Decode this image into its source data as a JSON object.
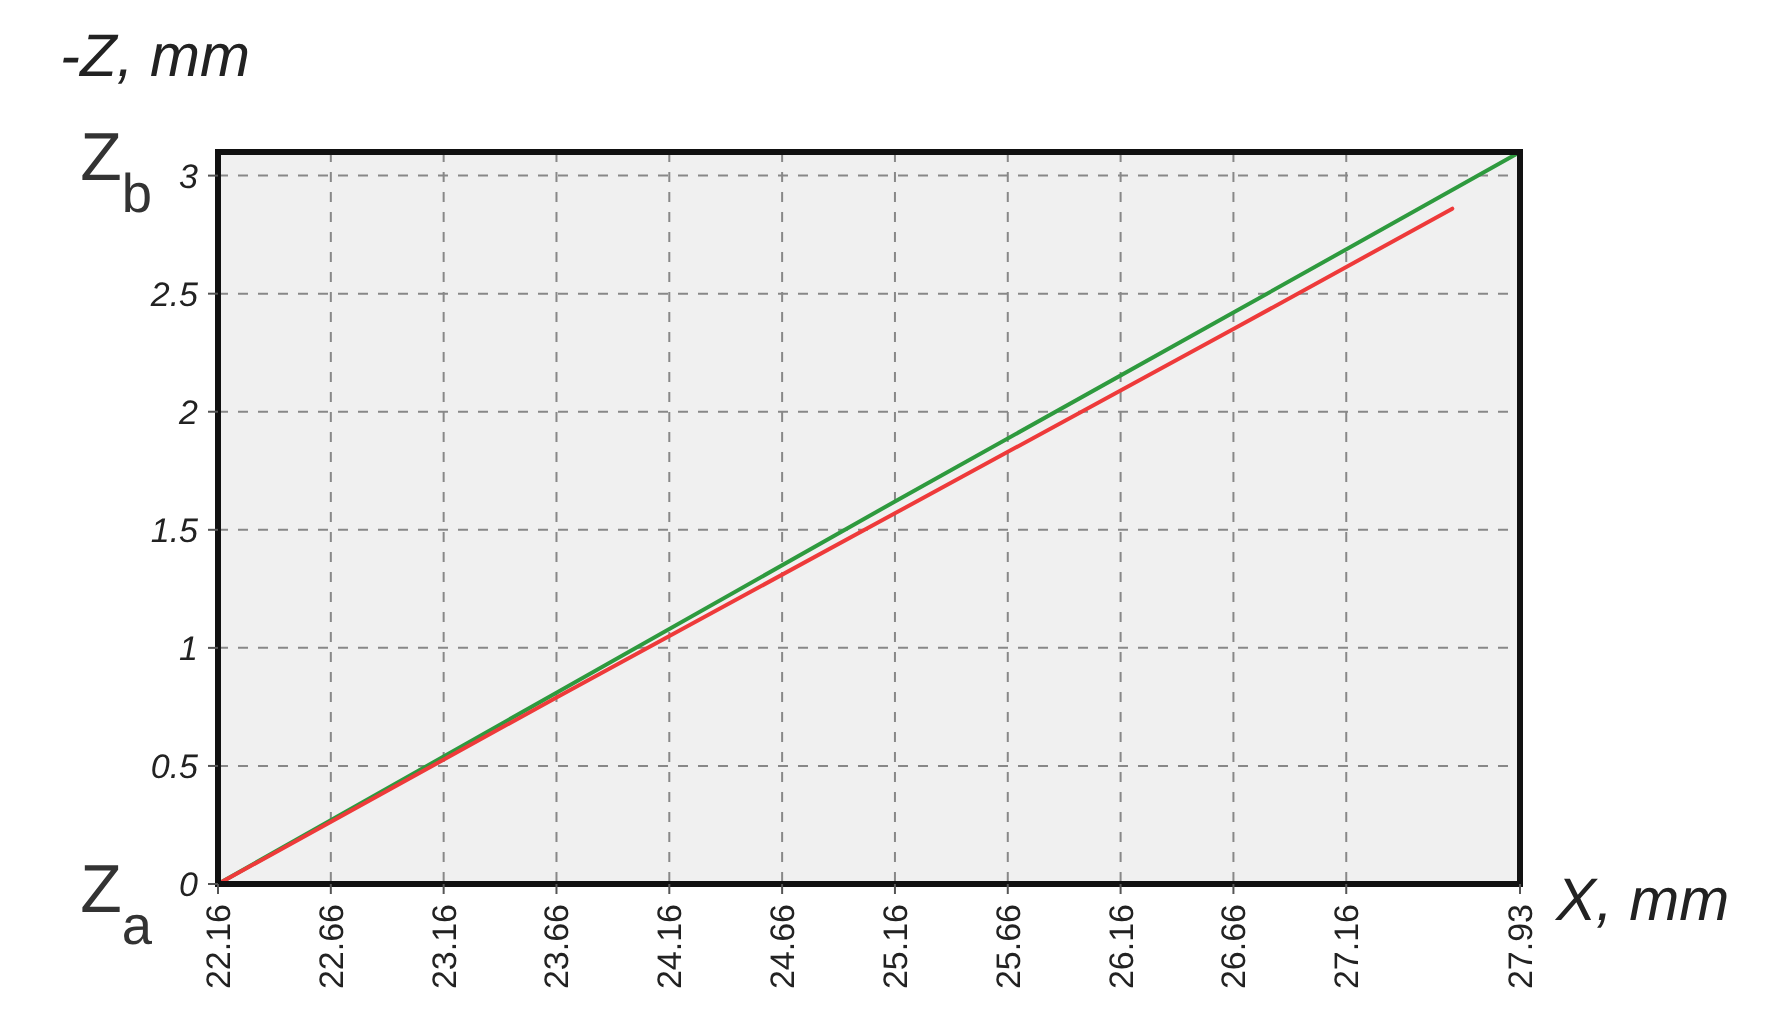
{
  "chart_data": {
    "type": "line",
    "xlabel": "X, mm",
    "ylabel": "-Z, mm",
    "xlim": [
      22.16,
      27.93
    ],
    "xticks": [
      22.16,
      22.66,
      23.16,
      23.66,
      24.16,
      24.66,
      25.16,
      25.66,
      26.16,
      26.66,
      27.16,
      27.93
    ],
    "ylim": [
      0,
      3.1
    ],
    "yticks": [
      0,
      0.5,
      1,
      1.5,
      2,
      2.5,
      3
    ],
    "grid": true,
    "line_style": "solid",
    "marker": "none",
    "annotations": [
      "Z$_{a}$",
      "Z$_{b}$"
    ],
    "series": [
      {
        "color": "#2e9a3e",
        "x": [
          22.16,
          23.66,
          25.16,
          26.66,
          27.93
        ],
        "values": [
          0,
          0.81,
          1.62,
          2.42,
          3.1
        ]
      },
      {
        "color": "#ee3a3a",
        "x": [
          22.16,
          23.66,
          25.16,
          26.66,
          27.63
        ],
        "values": [
          0,
          0.79,
          1.57,
          2.35,
          2.86
        ]
      }
    ]
  }
}
